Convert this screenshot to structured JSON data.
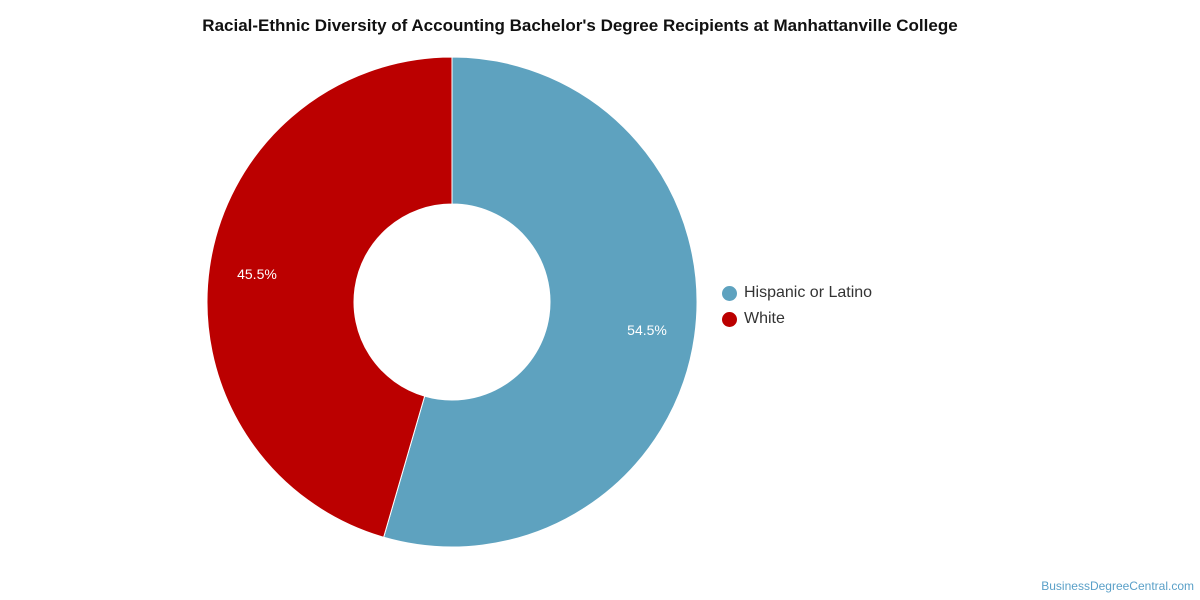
{
  "chart_data": {
    "type": "pie",
    "variant": "donut",
    "title": "Racial-Ethnic Diversity of Accounting Bachelor's Degree Recipients at Manhattanville College",
    "categories": [
      "Hispanic or Latino",
      "White"
    ],
    "values": [
      54.5,
      45.5
    ],
    "labels": [
      "54.5%",
      "45.5%"
    ],
    "colors": [
      "#5ea2bf",
      "#bb0000"
    ],
    "legend_position": "right"
  },
  "watermark": "BusinessDegreeCentral.com"
}
